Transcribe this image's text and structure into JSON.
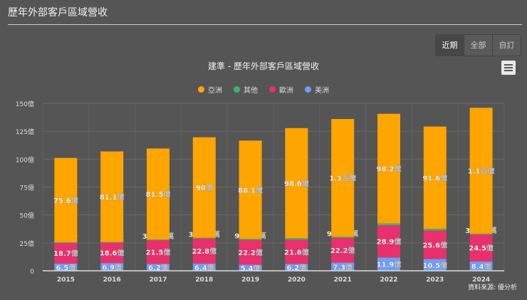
{
  "page_title": "歷年外部客戶區域營收",
  "range_buttons": [
    "近期",
    "全部",
    "自訂"
  ],
  "source": "資料來源: 優分析",
  "chart_data": {
    "type": "bar",
    "stacked": true,
    "title": "建準 - 歷年外部客戶區域營收",
    "categories": [
      "2015",
      "2016",
      "2017",
      "2018",
      "2019",
      "2020",
      "2021",
      "2022",
      "2023",
      "2024"
    ],
    "ylim": [
      0,
      150
    ],
    "y_ticks": [
      "0",
      "25億",
      "50億",
      "75億",
      "100億",
      "125億",
      "150億"
    ],
    "y_tick_values": [
      0,
      25,
      50,
      75,
      100,
      125,
      150
    ],
    "unit": "億",
    "grid": true,
    "legend_position": "top",
    "series": [
      {
        "name": "亞洲",
        "color": "#FFA500",
        "values": [
          75.6,
          81.1,
          81.5,
          90,
          88.1,
          98.6,
          105.5,
          98.2,
          91.6,
          112.8
        ],
        "labels": [
          "75.6億",
          "81.1億",
          "81.5億",
          "90億",
          "88.1億",
          "98.6億",
          "1.1百億",
          "98.2億",
          "91.6億",
          "1.1百億"
        ]
      },
      {
        "name": "其他",
        "color": "#3CB371",
        "values": [
          0.3,
          0.32,
          0.332,
          0.393,
          0.907,
          1.4,
          0.955,
          1.6,
          1.5,
          0.315
        ],
        "labels": [
          "30百萬",
          "32百萬",
          "33.2百萬",
          "39.3百萬",
          "90.7百萬",
          "1.4億",
          "95.5百萬",
          "1.6億",
          "1.5億",
          "31.5百萬"
        ]
      },
      {
        "name": "歐洲",
        "color": "#E8306E",
        "values": [
          18.7,
          18.6,
          21.5,
          22.8,
          22.2,
          21.6,
          22.2,
          28.9,
          25.6,
          24.5
        ],
        "labels": [
          "18.7億",
          "18.6億",
          "21.5億",
          "22.8億",
          "22.2億",
          "21.6億",
          "22.2億",
          "28.9億",
          "25.6億",
          "24.5億"
        ]
      },
      {
        "name": "美洲",
        "color": "#6E9EF5",
        "values": [
          6.5,
          6.9,
          6.2,
          6.4,
          5.4,
          6.2,
          7.3,
          11.9,
          10.5,
          8.4
        ],
        "labels": [
          "6.5億",
          "6.9億",
          "6.2億",
          "6.4億",
          "5.4億",
          "6.2億",
          "7.3億",
          "11.9億",
          "10.5億",
          "8.4億"
        ]
      }
    ]
  }
}
